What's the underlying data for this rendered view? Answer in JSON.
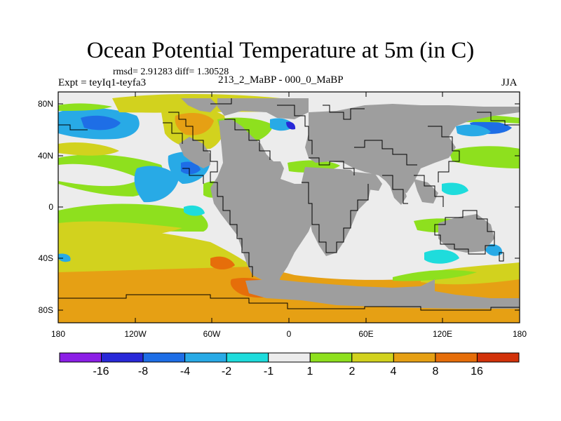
{
  "title": "Ocean Potential Temperature at 5m (in C)",
  "stats_line": "rmsd= 2.91283 diff= 1.30528",
  "experiment_label": "Expt = teyIq1-teyfa3",
  "experiment_name": "213_2_MaBP - 000_0_MaBP",
  "season": "JJA",
  "axes": {
    "lat_ticks": [
      "80N",
      "40N",
      "0",
      "40S",
      "80S"
    ],
    "lon_ticks": [
      "180",
      "120W",
      "60W",
      "0",
      "60E",
      "120E",
      "180"
    ]
  },
  "colorbar": {
    "labels": [
      "-16",
      "-8",
      "-4",
      "-2",
      "-1",
      "1",
      "2",
      "4",
      "8",
      "16"
    ],
    "colors": [
      "#8c1fe6",
      "#2828d8",
      "#1e6ee6",
      "#28aae6",
      "#1edcdc",
      "#ececec",
      "#8ee01e",
      "#d2d21e",
      "#e6a014",
      "#e66e0a",
      "#d2320a"
    ]
  },
  "land_color": "#9e9e9e",
  "coast_color": "#000000"
}
